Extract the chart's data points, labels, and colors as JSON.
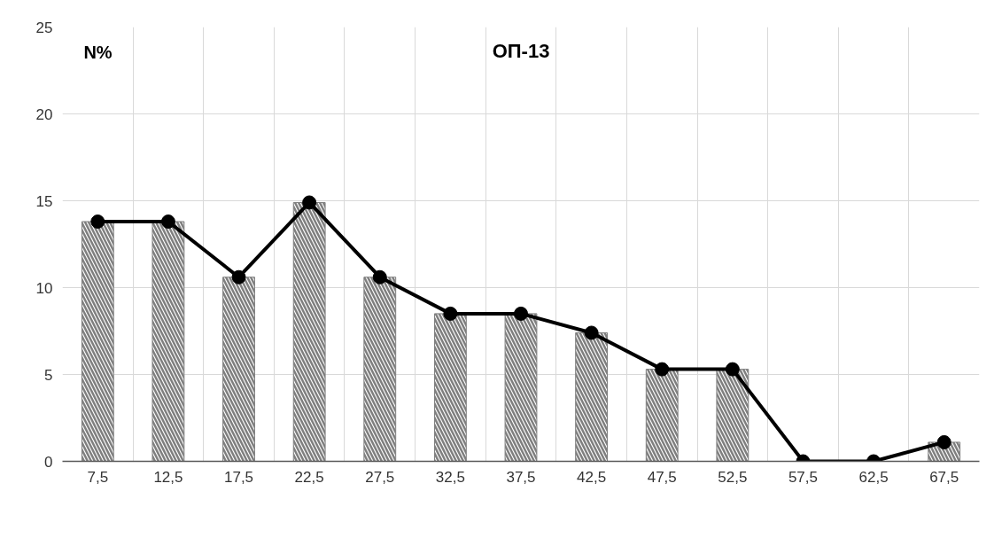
{
  "chart_data": {
    "type": "bar",
    "title": "ОП-13",
    "ylabel": "N%",
    "categories": [
      "7,5",
      "12,5",
      "17,5",
      "22,5",
      "27,5",
      "32,5",
      "37,5",
      "42,5",
      "47,5",
      "52,5",
      "57,5",
      "62,5",
      "67,5"
    ],
    "series": [
      {
        "color": "#7f7f7f",
        "values": [
          13.8,
          13.8,
          10.6,
          14.9,
          10.6,
          8.5,
          8.5,
          7.4,
          5.3,
          5.3,
          0,
          0,
          1.1
        ]
      },
      {
        "type": "line",
        "color": "#000000",
        "marker": "circle",
        "line_style": "solid",
        "values": [
          13.8,
          13.8,
          10.6,
          14.9,
          10.6,
          8.5,
          8.5,
          7.4,
          5.3,
          5.3,
          0,
          0,
          1.1
        ]
      }
    ],
    "ylim": [
      0,
      25
    ],
    "yticks": [
      0,
      5,
      10,
      15,
      20,
      25
    ],
    "grid": true
  }
}
